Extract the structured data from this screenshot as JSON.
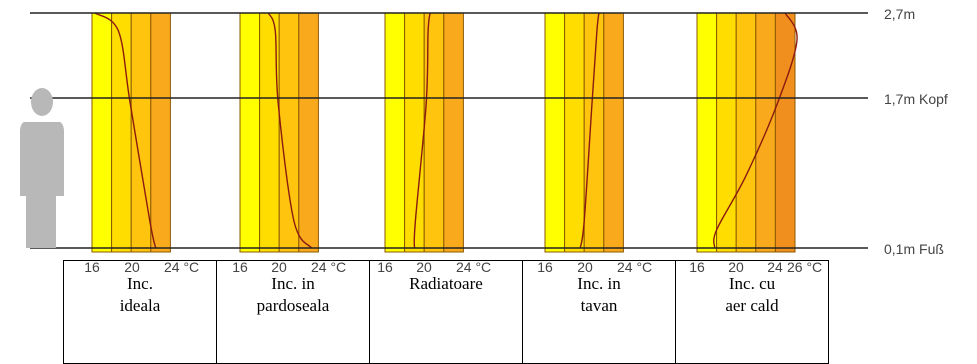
{
  "levels": [
    {
      "label": "2,7m"
    },
    {
      "label": "1,7m Kopf"
    },
    {
      "label": "0,1m Fuß"
    }
  ],
  "panels": [
    {
      "name_lines": [
        "Inc.",
        "ideala"
      ],
      "ticks": [
        "16",
        "20",
        "24 °C"
      ],
      "profile": [
        {
          "h": 0.1,
          "t": 22.5
        },
        {
          "h": 0.4,
          "t": 21.9
        },
        {
          "h": 1.7,
          "t": 19.9
        },
        {
          "h": 2.5,
          "t": 18.7
        },
        {
          "h": 2.7,
          "t": 16.3
        }
      ]
    },
    {
      "name_lines": [
        "Inc. in",
        "pardoseala"
      ],
      "ticks": [
        "16",
        "20",
        "24 °C"
      ],
      "profile": [
        {
          "h": 0.1,
          "t": 23.3
        },
        {
          "h": 0.4,
          "t": 21.5
        },
        {
          "h": 1.7,
          "t": 19.9
        },
        {
          "h": 2.5,
          "t": 19.6
        },
        {
          "h": 2.7,
          "t": 18.9
        }
      ]
    },
    {
      "name_lines": [
        "Radiatoare"
      ],
      "ticks": [
        "16",
        "20",
        "24 °C"
      ],
      "profile": [
        {
          "h": 0.1,
          "t": 19.0
        },
        {
          "h": 0.4,
          "t": 19.1
        },
        {
          "h": 1.7,
          "t": 20.2
        },
        {
          "h": 2.5,
          "t": 20.4
        },
        {
          "h": 2.7,
          "t": 20.6
        }
      ]
    },
    {
      "name_lines": [
        "Inc. in",
        "tavan"
      ],
      "ticks": [
        "16",
        "20",
        "24 °C"
      ],
      "profile": [
        {
          "h": 0.1,
          "t": 19.6
        },
        {
          "h": 0.4,
          "t": 20.0
        },
        {
          "h": 1.7,
          "t": 20.8
        },
        {
          "h": 2.5,
          "t": 21.3
        },
        {
          "h": 2.7,
          "t": 21.5
        }
      ]
    },
    {
      "name_lines": [
        "Inc. cu",
        "aer cald"
      ],
      "ticks": [
        "16",
        "20",
        "24",
        "26 °C"
      ],
      "profile": [
        {
          "h": 0.1,
          "t": 17.8
        },
        {
          "h": 0.3,
          "t": 18.0
        },
        {
          "h": 0.9,
          "t": 21.0
        },
        {
          "h": 1.7,
          "t": 24.2
        },
        {
          "h": 2.4,
          "t": 26.2
        },
        {
          "h": 2.7,
          "t": 25.0
        }
      ]
    }
  ],
  "colors": {
    "band_1": "#ffff00",
    "band_2": "#ffdd00",
    "band_3": "#ffc50e",
    "band_4": "#f9a91c",
    "band_5": "#f18f1e",
    "band_6": "#e9821a",
    "curve": "#8b1a10",
    "person": "#b8b8b8"
  }
}
